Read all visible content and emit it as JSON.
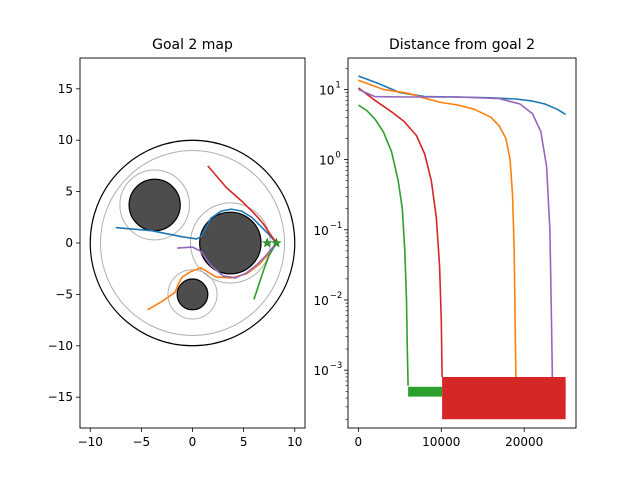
{
  "chart_data": [
    {
      "type": "line",
      "title": "Goal 2 map",
      "xlabel": "",
      "ylabel": "",
      "xlim": [
        -11,
        11
      ],
      "ylim": [
        -18,
        18
      ],
      "xticks": [
        -10,
        -5,
        0,
        5,
        10
      ],
      "yticks": [
        -15,
        -10,
        -5,
        0,
        5,
        10,
        15
      ],
      "colors": {
        "blue": "#1f77b4",
        "orange": "#ff7f0e",
        "green": "#2ca02c",
        "red": "#d62728",
        "purple": "#9467bd",
        "obstacle": "#4d4d4d",
        "margin": "#b0b0b0"
      },
      "boundary": {
        "center": [
          0,
          0
        ],
        "outer_radius": 10,
        "inner_radius": 9
      },
      "obstacles": [
        {
          "center": [
            -3.7,
            3.7
          ],
          "radius": 2.5,
          "margin_radius": 3.4
        },
        {
          "center": [
            3.7,
            0
          ],
          "radius": 3.0,
          "margin_radius": 3.9
        },
        {
          "center": [
            0,
            -5
          ],
          "radius": 1.5,
          "margin_radius": 2.4
        }
      ],
      "goals": [
        [
          7.3,
          0
        ],
        [
          8.2,
          0
        ]
      ],
      "series": [
        {
          "color": "blue",
          "x": [
            -7.5,
            -4.0,
            -1.0,
            0.4,
            0.8,
            1.2,
            1.8,
            2.8,
            3.8,
            4.8,
            5.8,
            6.7,
            7.5,
            8.2
          ],
          "y": [
            1.5,
            1.2,
            0.6,
            0.4,
            0.6,
            1.3,
            2.4,
            3.1,
            3.3,
            3.1,
            2.5,
            1.6,
            0.8,
            0.0
          ]
        },
        {
          "color": "orange",
          "x": [
            -4.4,
            -3.0,
            -1.7,
            -1.3,
            -1.0,
            -0.2,
            0.8,
            2.3,
            3.8,
            5.3,
            6.5,
            7.5,
            8.2
          ],
          "y": [
            -6.5,
            -5.7,
            -4.8,
            -3.8,
            -3.3,
            -2.8,
            -2.4,
            -3.3,
            -3.4,
            -3.0,
            -2.1,
            -1.0,
            0.0
          ]
        },
        {
          "color": "green",
          "x": [
            6.0,
            6.5,
            7.0,
            7.5,
            8.2
          ],
          "y": [
            -5.5,
            -4.0,
            -2.5,
            -1.2,
            0.0
          ]
        },
        {
          "color": "red",
          "x": [
            1.5,
            3.3,
            4.9,
            6.1,
            6.9,
            7.5,
            8.2
          ],
          "y": [
            7.5,
            5.4,
            4.0,
            2.8,
            1.9,
            1.0,
            0.0
          ]
        },
        {
          "color": "purple",
          "x": [
            -1.5,
            0.0,
            0.8,
            1.8,
            3.0,
            4.2,
            5.3,
            6.3,
            7.1,
            7.7,
            8.2
          ],
          "y": [
            -0.5,
            -0.4,
            -0.8,
            -2.2,
            -3.2,
            -3.4,
            -2.9,
            -2.1,
            -1.3,
            -0.6,
            0.0
          ]
        }
      ]
    },
    {
      "type": "line",
      "title": "Distance from goal 2",
      "xlabel": "",
      "ylabel": "",
      "xlim": [
        -1250,
        26250
      ],
      "yscale": "log",
      "ylim": [
        0.00015,
        28
      ],
      "xticks": [
        0,
        10000,
        20000
      ],
      "ytick_labels": [
        {
          "value": 10,
          "label": "10",
          "exp": "1"
        },
        {
          "value": 1,
          "label": "10",
          "exp": "0"
        },
        {
          "value": 0.1,
          "label": "10",
          "exp": "−1"
        },
        {
          "value": 0.01,
          "label": "10",
          "exp": "−2"
        },
        {
          "value": 0.001,
          "label": "10",
          "exp": "−3"
        }
      ],
      "series": [
        {
          "color": "blue",
          "x": [
            0,
            2500,
            5000,
            8000,
            12000,
            16000,
            19000,
            21000,
            22500,
            24000,
            25000
          ],
          "y": [
            15.5,
            12,
            9,
            7.9,
            7.8,
            7.6,
            7.3,
            6.8,
            6.2,
            5.2,
            4.4
          ]
        },
        {
          "color": "orange",
          "x": [
            0,
            3000,
            6000,
            8000,
            10000,
            12000,
            14000,
            16000,
            17000,
            17800,
            18300,
            18600,
            18800,
            18900,
            19000
          ],
          "y": [
            13.5,
            10,
            8.8,
            7.5,
            6.5,
            6,
            5.2,
            4,
            3,
            2,
            1,
            0.3,
            0.05,
            0.005,
            0.0008
          ]
        },
        {
          "color": "green",
          "x": [
            0,
            1000,
            2000,
            3000,
            4000,
            4800,
            5300,
            5600,
            5800,
            5900,
            6000
          ],
          "y": [
            6,
            5,
            3.8,
            2.5,
            1.3,
            0.5,
            0.2,
            0.05,
            0.01,
            0.002,
            0.0006
          ]
        },
        {
          "color": "red",
          "x": [
            0,
            2000,
            4000,
            5500,
            7000,
            8000,
            8800,
            9400,
            9800,
            10000,
            10100
          ],
          "y": [
            10.5,
            7,
            4.8,
            3.5,
            2.2,
            1.2,
            0.5,
            0.15,
            0.03,
            0.005,
            0.0008
          ]
        },
        {
          "color": "purple",
          "x": [
            0,
            2000,
            6000,
            12000,
            17000,
            19500,
            21000,
            22000,
            22700,
            23100,
            23300,
            23400
          ],
          "y": [
            10,
            7.9,
            7.8,
            7.8,
            7.4,
            6.2,
            4.5,
            2.5,
            0.8,
            0.1,
            0.005,
            0.0007
          ]
        }
      ],
      "noise_bands": [
        {
          "color": "green",
          "x": [
            6000,
            10100
          ],
          "y": [
            0.00042,
            0.00058
          ]
        },
        {
          "color": "purple",
          "x": [
            23300,
            25000
          ],
          "y": [
            0.00042,
            0.00058
          ]
        },
        {
          "color": "red",
          "x": [
            10100,
            25000
          ],
          "y": [
            0.0002,
            0.0008
          ]
        }
      ]
    }
  ]
}
